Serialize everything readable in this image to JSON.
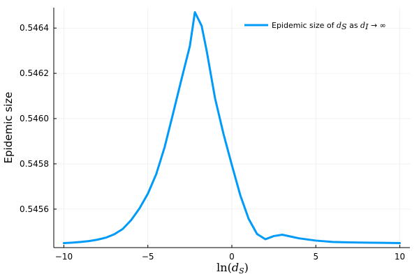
{
  "chart_data": {
    "type": "line",
    "xlabel_main": "ln(",
    "xlabel_var": "d",
    "xlabel_sub": "S",
    "xlabel_close": ")",
    "ylabel": "Epidemic size",
    "xlim": [
      -10.6,
      10.6
    ],
    "ylim": [
      0.54543,
      0.54649
    ],
    "x_ticks": [
      -10,
      -5,
      0,
      5,
      10
    ],
    "x_tick_labels": [
      "−10",
      "−5",
      "0",
      "5",
      "10"
    ],
    "y_ticks": [
      0.5456,
      0.5458,
      0.546,
      0.5462,
      0.5464
    ],
    "y_tick_labels": [
      "0.5456",
      "0.5458",
      "0.5460",
      "0.5462",
      "0.5464"
    ],
    "grid": true,
    "legend_position": "top-right",
    "legend": {
      "prefix": "Epidemic size of ",
      "var1": "d",
      "sub1": "S",
      "middle": " as ",
      "var2": "d",
      "sub2": "I",
      "suffix": " → ∞"
    },
    "series": [
      {
        "color": "#009AF9",
        "x": [
          -10,
          -9.5,
          -9,
          -8.5,
          -8,
          -7.5,
          -7,
          -6.5,
          -6,
          -5.5,
          -5,
          -4.5,
          -4,
          -3.5,
          -3,
          -2.5,
          -2.2,
          -1.8,
          -1.5,
          -1,
          -0.5,
          0,
          0.5,
          1,
          1.5,
          2,
          2.5,
          3,
          3.5,
          4,
          5,
          6,
          7,
          8,
          9,
          10
        ],
        "y": [
          0.54545,
          0.545452,
          0.545455,
          0.545459,
          0.545465,
          0.545474,
          0.545489,
          0.545512,
          0.545551,
          0.545603,
          0.545668,
          0.545755,
          0.545874,
          0.546022,
          0.546173,
          0.54632,
          0.54647,
          0.54641,
          0.5463,
          0.54609,
          0.545933,
          0.545795,
          0.545662,
          0.545557,
          0.54549,
          0.545467,
          0.545481,
          0.545487,
          0.545479,
          0.545471,
          0.545461,
          0.545455,
          0.545453,
          0.545452,
          0.545451,
          0.54545
        ]
      }
    ]
  }
}
